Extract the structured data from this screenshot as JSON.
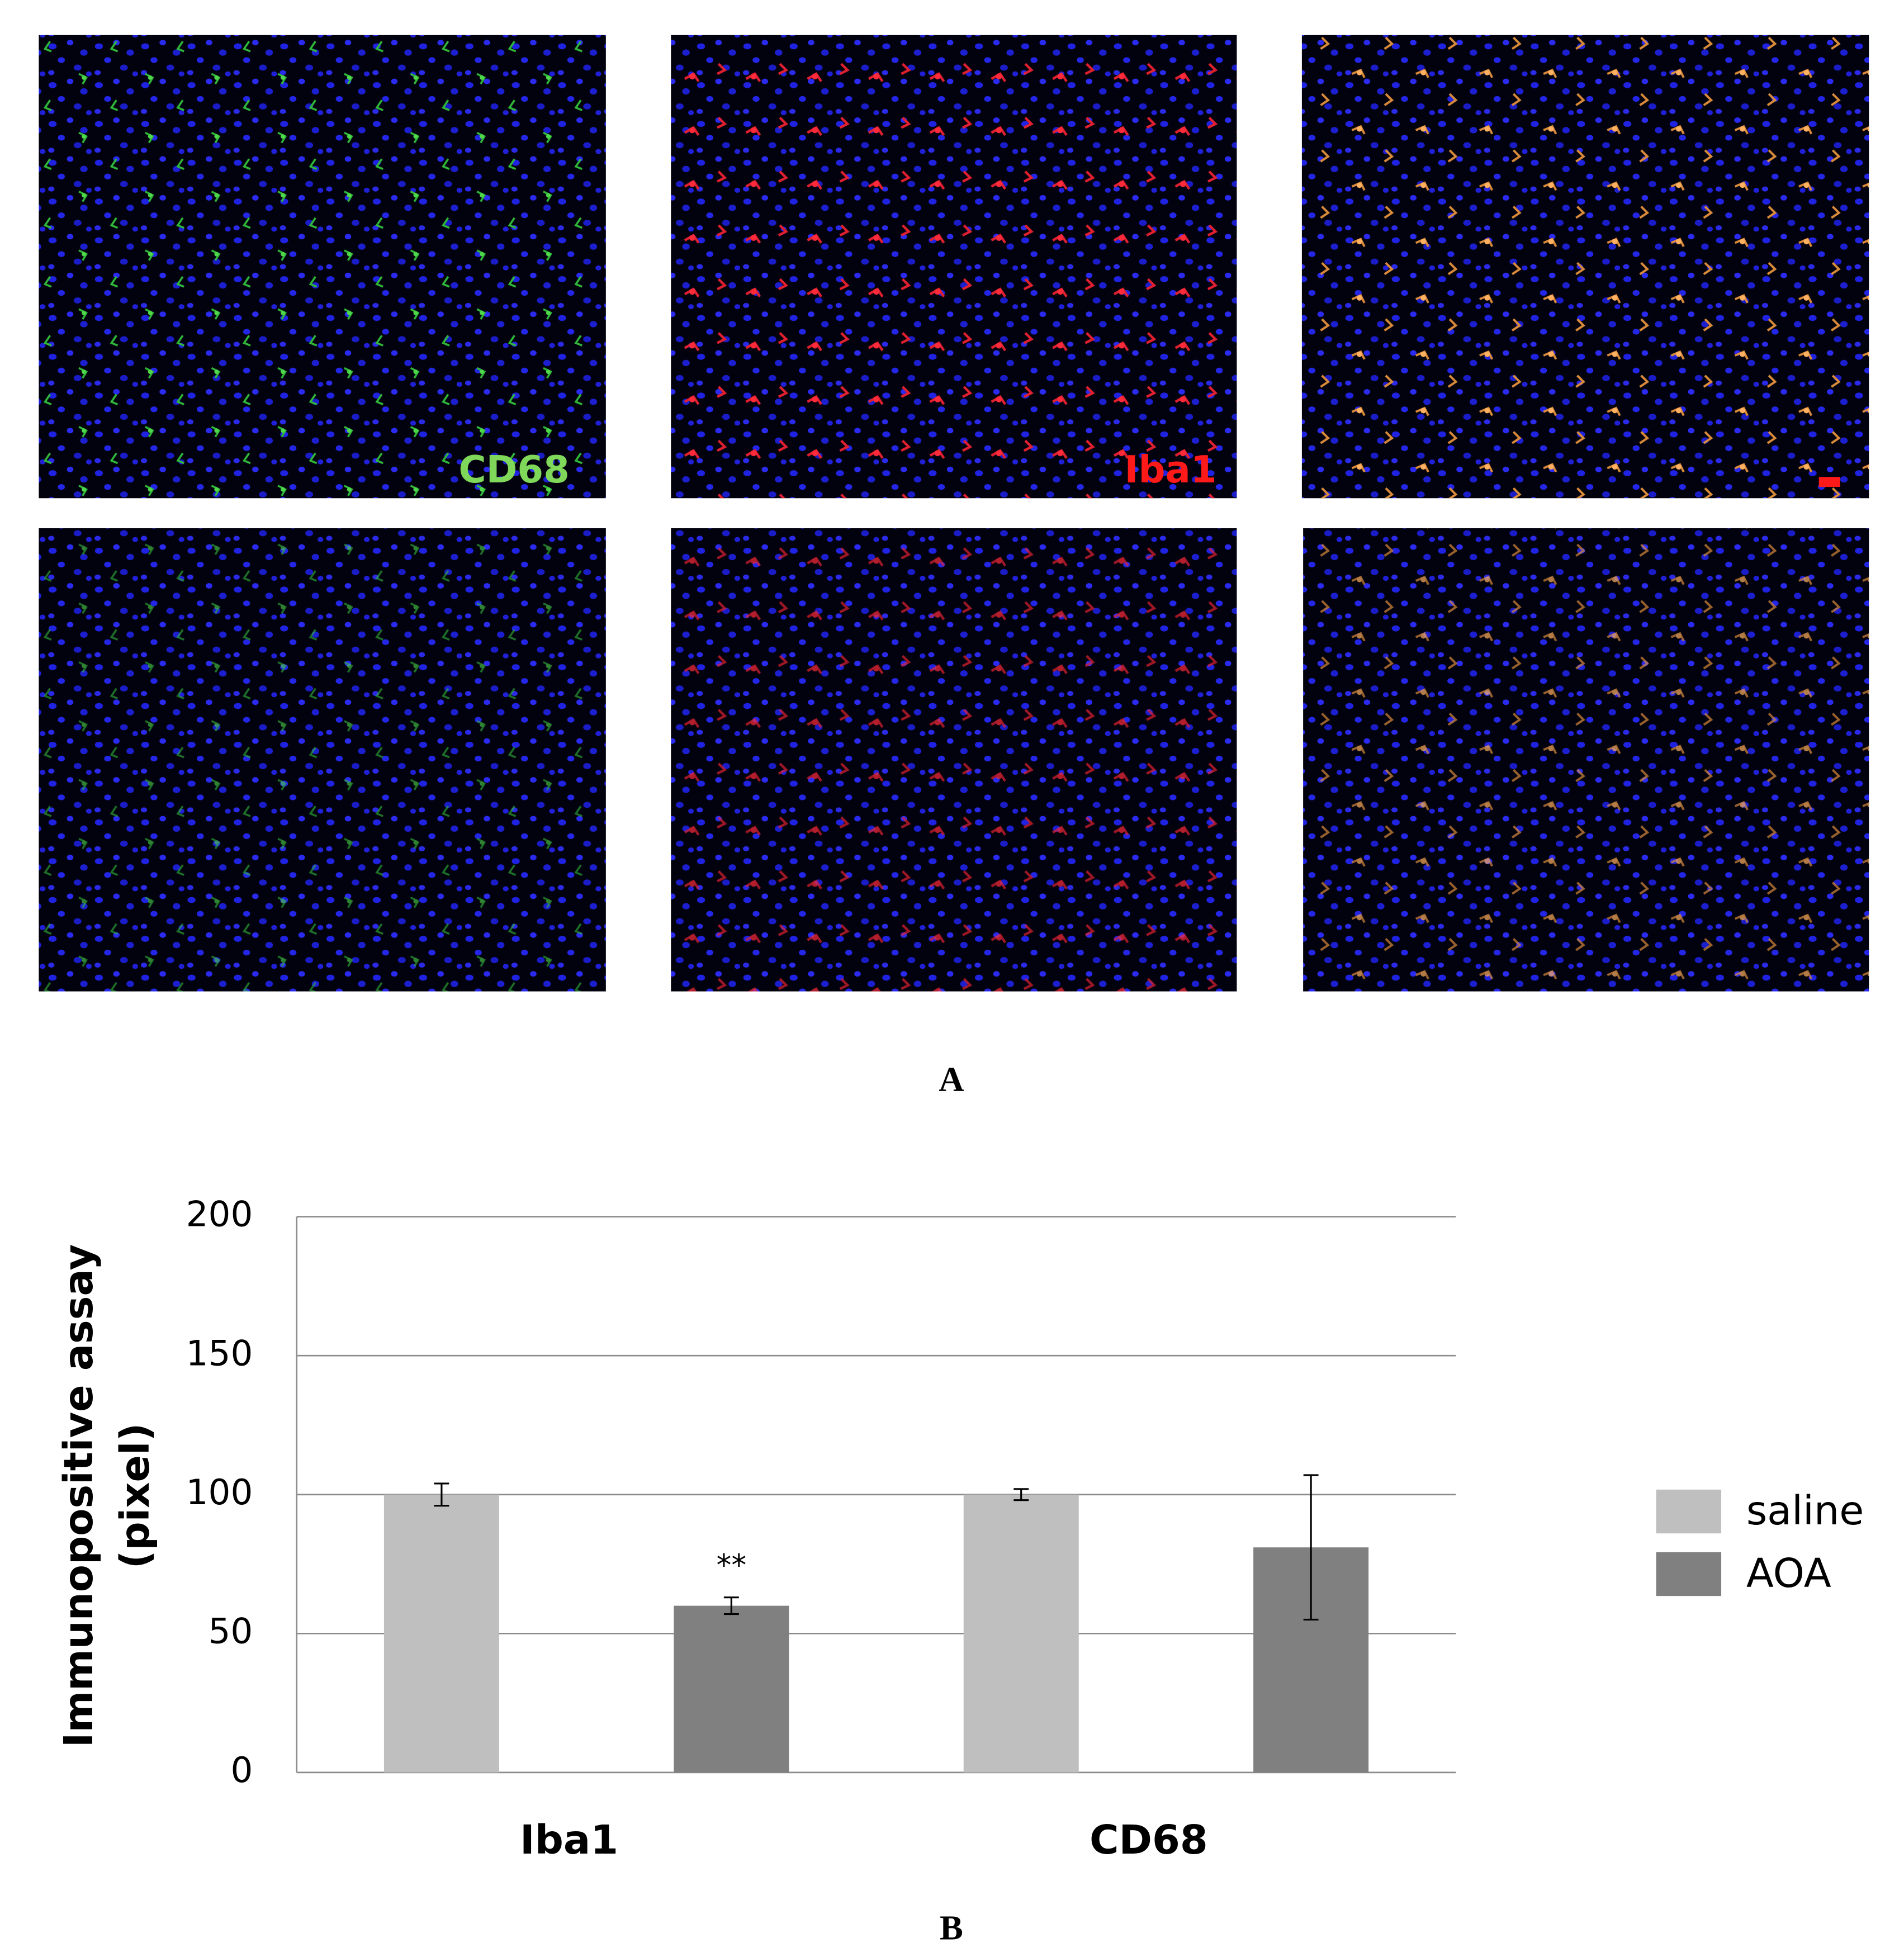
{
  "panel_a": {
    "label": "A",
    "image_labels": [
      "CD68",
      "Iba1"
    ]
  },
  "panel_b_label": "B",
  "chart_data": {
    "type": "bar",
    "ylabel": [
      "Immunopositive assay",
      "(pixel)"
    ],
    "categories": [
      "Iba1",
      "CD68"
    ],
    "series": [
      {
        "name": "saline",
        "color": "#bfbfbf",
        "values": [
          100,
          100
        ],
        "errors": [
          4,
          2
        ]
      },
      {
        "name": "AOA",
        "color": "#808080",
        "values": [
          60,
          81
        ],
        "errors": [
          3,
          26
        ]
      }
    ],
    "annotations": [
      {
        "text": "**",
        "series": 1,
        "category": 0
      }
    ],
    "ylim": [
      0,
      200
    ],
    "yticks": [
      0,
      50,
      100,
      150,
      200
    ],
    "grid": true,
    "legend": "right"
  }
}
